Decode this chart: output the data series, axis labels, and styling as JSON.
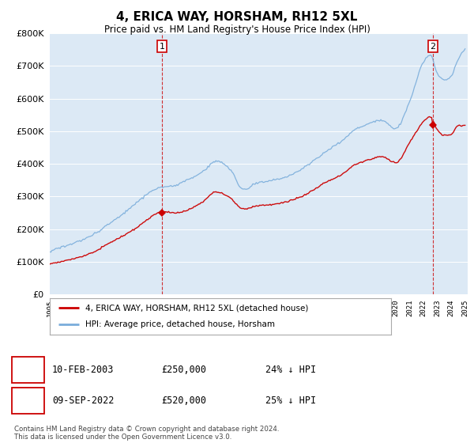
{
  "title": "4, ERICA WAY, HORSHAM, RH12 5XL",
  "subtitle": "Price paid vs. HM Land Registry's House Price Index (HPI)",
  "hpi_label": "HPI: Average price, detached house, Horsham",
  "price_label": "4, ERICA WAY, HORSHAM, RH12 5XL (detached house)",
  "sale1_date": "10-FEB-2003",
  "sale1_price": 250000,
  "sale1_hpi_diff": "24% ↓ HPI",
  "sale2_date": "09-SEP-2022",
  "sale2_price": 520000,
  "sale2_hpi_diff": "25% ↓ HPI",
  "footer": "Contains HM Land Registry data © Crown copyright and database right 2024.\nThis data is licensed under the Open Government Licence v3.0.",
  "price_color": "#cc0000",
  "hpi_color": "#7aaddb",
  "chart_bg": "#dce9f5",
  "background_color": "#ffffff",
  "grid_color": "#ffffff",
  "ylim": [
    0,
    800000
  ],
  "yticks": [
    0,
    100000,
    200000,
    300000,
    400000,
    500000,
    600000,
    700000,
    800000
  ],
  "sale1_year": 2003.107,
  "sale2_year": 2022.681,
  "hpi_key_years": [
    1995,
    1996,
    1997,
    1998,
    1999,
    2000,
    2001,
    2002,
    2003,
    2004,
    2005,
    2006,
    2007,
    2008,
    2009,
    2010,
    2011,
    2012,
    2013,
    2014,
    2015,
    2016,
    2017,
    2018,
    2019,
    2020,
    2021,
    2022,
    2022.5,
    2023,
    2023.5,
    2024,
    2024.5,
    2025
  ],
  "hpi_key_vals": [
    130000,
    148000,
    162000,
    182000,
    210000,
    240000,
    275000,
    310000,
    335000,
    340000,
    360000,
    385000,
    420000,
    395000,
    330000,
    355000,
    360000,
    368000,
    385000,
    415000,
    445000,
    475000,
    510000,
    530000,
    545000,
    520000,
    600000,
    720000,
    740000,
    680000,
    660000,
    670000,
    720000,
    750000
  ],
  "price_key_years": [
    1995,
    1996,
    1997,
    1998,
    1999,
    2000,
    2001,
    2002,
    2003,
    2004,
    2005,
    2006,
    2007,
    2008,
    2009,
    2010,
    2011,
    2012,
    2013,
    2014,
    2015,
    2016,
    2017,
    2018,
    2019,
    2020,
    2021,
    2022,
    2022.5,
    2023,
    2023.5,
    2024,
    2024.5,
    2025
  ],
  "price_key_vals": [
    95000,
    105000,
    112000,
    127000,
    148000,
    170000,
    195000,
    225000,
    250000,
    245000,
    258000,
    278000,
    310000,
    292000,
    258000,
    268000,
    272000,
    278000,
    290000,
    310000,
    335000,
    355000,
    385000,
    400000,
    410000,
    393000,
    455000,
    520000,
    535000,
    495000,
    478000,
    482000,
    510000,
    510000
  ],
  "hpi_noise_std": 5000,
  "price_noise_std": 3500
}
